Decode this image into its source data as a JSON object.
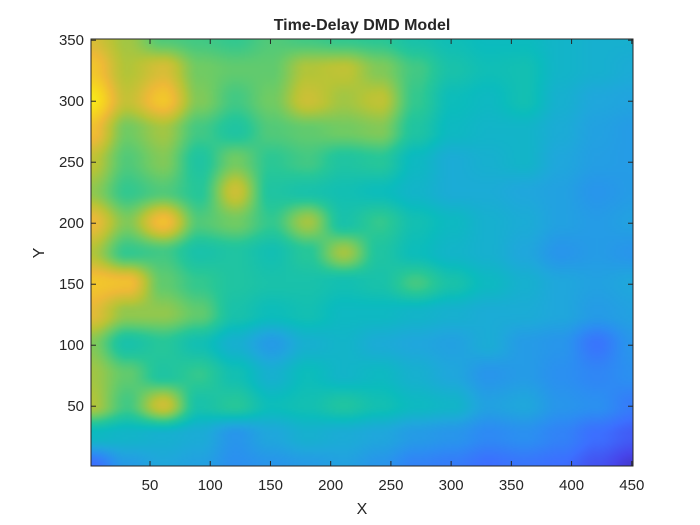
{
  "chart_data": {
    "type": "heatmap",
    "title": "Time-Delay DMD Model",
    "xlabel": "X",
    "ylabel": "Y",
    "xlim": [
      1,
      451
    ],
    "ylim": [
      1,
      351
    ],
    "xticks": [
      50,
      100,
      150,
      200,
      250,
      300,
      350,
      400,
      450
    ],
    "yticks": [
      50,
      100,
      150,
      200,
      250,
      300,
      350
    ],
    "colormap": "parula",
    "colormap_stops": [
      "#3e26a8",
      "#4746eb",
      "#3c70ff",
      "#2c8ef2",
      "#1fa8db",
      "#0bbcbd",
      "#28c797",
      "#6ecb65",
      "#b8c436",
      "#eeb937",
      "#f7d71f",
      "#f9fb15"
    ],
    "grid": false,
    "field": {
      "x_grid": [
        1,
        31,
        61,
        91,
        121,
        151,
        181,
        211,
        241,
        271,
        301,
        331,
        361,
        391,
        421,
        451
      ],
      "y_grid": [
        1,
        26,
        51,
        76,
        101,
        126,
        151,
        176,
        201,
        226,
        251,
        276,
        301,
        326,
        351
      ],
      "values_by_row_from_top": [
        [
          0.78,
          0.7,
          0.6,
          0.58,
          0.56,
          0.6,
          0.58,
          0.56,
          0.55,
          0.5,
          0.47,
          0.45,
          0.45,
          0.42,
          0.4,
          0.4
        ],
        [
          0.86,
          0.72,
          0.78,
          0.64,
          0.62,
          0.62,
          0.72,
          0.74,
          0.66,
          0.58,
          0.5,
          0.47,
          0.48,
          0.42,
          0.4,
          0.38
        ],
        [
          0.95,
          0.75,
          0.86,
          0.66,
          0.58,
          0.64,
          0.76,
          0.7,
          0.74,
          0.56,
          0.46,
          0.44,
          0.48,
          0.4,
          0.36,
          0.35
        ],
        [
          0.84,
          0.64,
          0.7,
          0.58,
          0.52,
          0.6,
          0.62,
          0.64,
          0.66,
          0.52,
          0.44,
          0.42,
          0.42,
          0.38,
          0.34,
          0.32
        ],
        [
          0.74,
          0.6,
          0.66,
          0.52,
          0.64,
          0.55,
          0.58,
          0.52,
          0.54,
          0.44,
          0.38,
          0.4,
          0.42,
          0.36,
          0.33,
          0.32
        ],
        [
          0.68,
          0.56,
          0.6,
          0.54,
          0.76,
          0.52,
          0.5,
          0.48,
          0.46,
          0.42,
          0.38,
          0.38,
          0.36,
          0.34,
          0.3,
          0.32
        ],
        [
          0.82,
          0.66,
          0.84,
          0.6,
          0.64,
          0.56,
          0.7,
          0.5,
          0.56,
          0.48,
          0.44,
          0.4,
          0.38,
          0.34,
          0.32,
          0.34
        ],
        [
          0.72,
          0.56,
          0.58,
          0.5,
          0.52,
          0.48,
          0.54,
          0.7,
          0.52,
          0.46,
          0.42,
          0.4,
          0.36,
          0.3,
          0.32,
          0.3
        ],
        [
          0.86,
          0.84,
          0.62,
          0.56,
          0.52,
          0.5,
          0.5,
          0.48,
          0.5,
          0.58,
          0.5,
          0.44,
          0.4,
          0.36,
          0.34,
          0.36
        ],
        [
          0.8,
          0.68,
          0.68,
          0.62,
          0.5,
          0.46,
          0.48,
          0.44,
          0.44,
          0.42,
          0.4,
          0.38,
          0.38,
          0.36,
          0.32,
          0.34
        ],
        [
          0.66,
          0.5,
          0.54,
          0.48,
          0.4,
          0.32,
          0.4,
          0.42,
          0.38,
          0.36,
          0.34,
          0.38,
          0.32,
          0.3,
          0.2,
          0.3
        ],
        [
          0.7,
          0.62,
          0.52,
          0.56,
          0.48,
          0.4,
          0.46,
          0.42,
          0.44,
          0.4,
          0.36,
          0.3,
          0.32,
          0.28,
          0.25,
          0.28
        ],
        [
          0.72,
          0.58,
          0.76,
          0.5,
          0.54,
          0.46,
          0.48,
          0.52,
          0.48,
          0.44,
          0.42,
          0.34,
          0.36,
          0.3,
          0.28,
          0.22
        ],
        [
          0.44,
          0.42,
          0.4,
          0.38,
          0.3,
          0.36,
          0.4,
          0.38,
          0.36,
          0.32,
          0.3,
          0.26,
          0.28,
          0.24,
          0.18,
          0.14
        ],
        [
          0.18,
          0.32,
          0.36,
          0.34,
          0.28,
          0.3,
          0.32,
          0.34,
          0.3,
          0.24,
          0.22,
          0.18,
          0.2,
          0.18,
          0.12,
          0.06
        ]
      ]
    }
  }
}
